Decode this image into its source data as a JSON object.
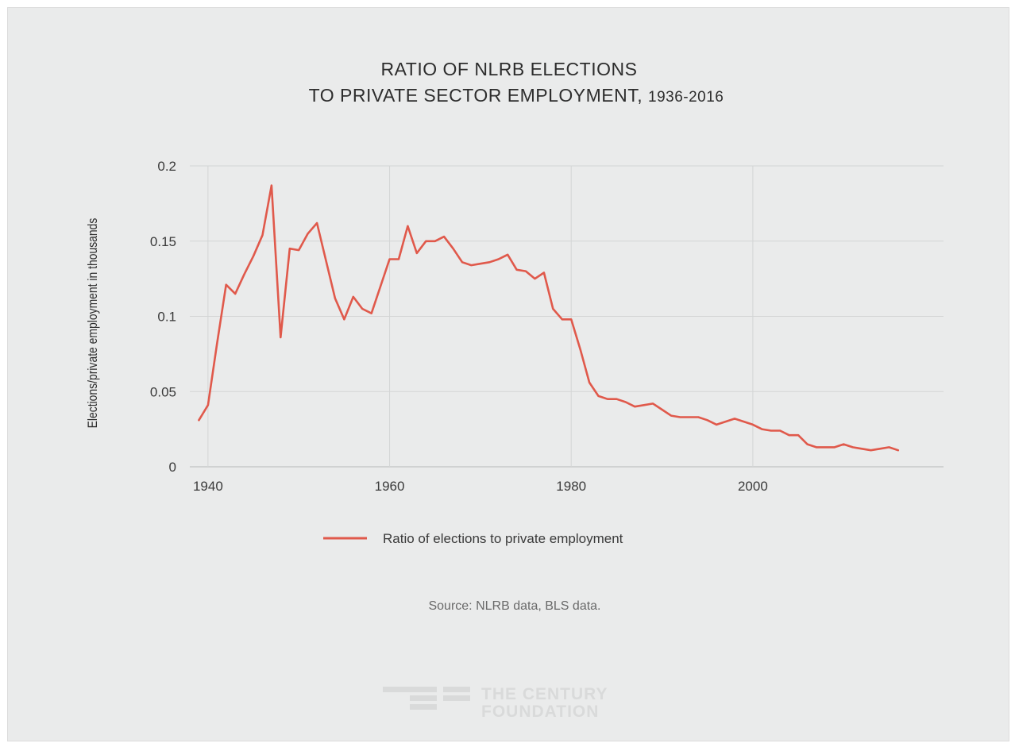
{
  "chart_data": {
    "type": "line",
    "title_line1": "RATIO OF NLRB ELECTIONS",
    "title_line2": "TO PRIVATE SECTOR EMPLOYMENT,",
    "title_years": "1936-2016",
    "ylabel": "Elections/private employment in thousands",
    "xlabel": "",
    "xlim": [
      1938,
      2021
    ],
    "ylim": [
      0,
      0.2
    ],
    "x_ticks": [
      {
        "value": 1940,
        "label": "1940"
      },
      {
        "value": 1960,
        "label": "1960"
      },
      {
        "value": 1980,
        "label": "1980"
      },
      {
        "value": 2000,
        "label": "2000"
      }
    ],
    "y_ticks": [
      {
        "value": 0,
        "label": "0"
      },
      {
        "value": 0.05,
        "label": "0.05"
      },
      {
        "value": 0.1,
        "label": "0.1"
      },
      {
        "value": 0.15,
        "label": "0.15"
      },
      {
        "value": 0.2,
        "label": "0.2"
      }
    ],
    "grid": true,
    "legend_position": "bottom-center",
    "series": [
      {
        "name": "Ratio of elections to private employment",
        "color": "#e0594b",
        "x": [
          1939,
          1940,
          1941,
          1942,
          1943,
          1944,
          1945,
          1946,
          1947,
          1948,
          1949,
          1950,
          1951,
          1952,
          1953,
          1954,
          1955,
          1956,
          1957,
          1958,
          1959,
          1960,
          1961,
          1962,
          1963,
          1964,
          1965,
          1966,
          1967,
          1968,
          1969,
          1970,
          1971,
          1972,
          1973,
          1974,
          1975,
          1976,
          1977,
          1978,
          1979,
          1980,
          1981,
          1982,
          1983,
          1984,
          1985,
          1986,
          1987,
          1988,
          1989,
          1990,
          1991,
          1992,
          1993,
          1994,
          1995,
          1996,
          1997,
          1998,
          1999,
          2000,
          2001,
          2002,
          2003,
          2004,
          2005,
          2006,
          2007,
          2008,
          2009,
          2010,
          2011,
          2012,
          2013,
          2014,
          2015,
          2016
        ],
        "y": [
          0.031,
          0.041,
          0.082,
          0.121,
          0.115,
          0.128,
          0.14,
          0.154,
          0.187,
          0.086,
          0.145,
          0.144,
          0.155,
          0.162,
          0.137,
          0.112,
          0.098,
          0.113,
          0.105,
          0.102,
          0.12,
          0.138,
          0.138,
          0.16,
          0.142,
          0.15,
          0.15,
          0.153,
          0.145,
          0.136,
          0.134,
          0.135,
          0.136,
          0.138,
          0.141,
          0.131,
          0.13,
          0.125,
          0.129,
          0.105,
          0.098,
          0.098,
          0.078,
          0.056,
          0.047,
          0.045,
          0.045,
          0.043,
          0.04,
          0.041,
          0.042,
          0.038,
          0.034,
          0.033,
          0.033,
          0.033,
          0.031,
          0.028,
          0.03,
          0.032,
          0.03,
          0.028,
          0.025,
          0.024,
          0.024,
          0.021,
          0.021,
          0.015,
          0.013,
          0.013,
          0.013,
          0.015,
          0.013,
          0.012,
          0.011,
          0.012,
          0.013,
          0.011
        ]
      }
    ]
  },
  "source": "Source: NLRB data, BLS data.",
  "logo": {
    "line1": "THE CENTURY",
    "line2": "FOUNDATION"
  }
}
